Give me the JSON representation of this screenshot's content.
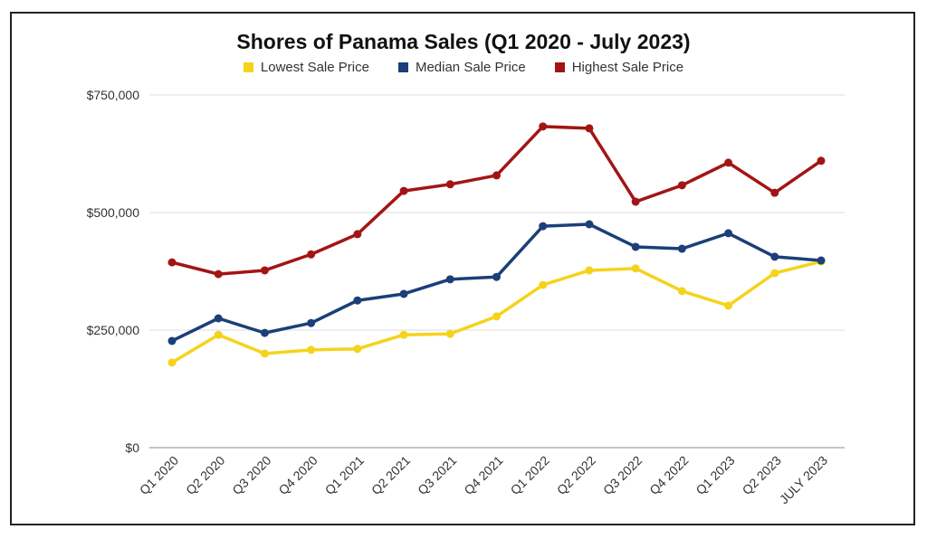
{
  "chart_data": {
    "type": "line",
    "title": "Shores of Panama Sales (Q1 2020 - July 2023)",
    "categories": [
      "Q1 2020",
      "Q2 2020",
      "Q3 2020",
      "Q4 2020",
      "Q1 2021",
      "Q2 2021",
      "Q3 2021",
      "Q4 2021",
      "Q1 2022",
      "Q2 2022",
      "Q3 2022",
      "Q4 2022",
      "Q1 2023",
      "Q2 2023",
      "JULY 2023"
    ],
    "ylim": [
      0,
      750000
    ],
    "yticks": [
      0,
      250000,
      500000,
      750000
    ],
    "ytick_labels": [
      "$0",
      "$250,000",
      "$500,000",
      "$750,000"
    ],
    "grid": true,
    "legend_position": "top",
    "series": [
      {
        "name": "Lowest Sale Price",
        "color": "#f5d31c",
        "values": [
          181000,
          240000,
          200000,
          208000,
          210000,
          240000,
          242000,
          279000,
          346000,
          377000,
          381000,
          333000,
          302000,
          371000,
          396000
        ]
      },
      {
        "name": "Median Sale Price",
        "color": "#1b3f78",
        "values": [
          227000,
          275000,
          244000,
          265000,
          313000,
          327000,
          358000,
          363000,
          471000,
          475000,
          427000,
          423000,
          456000,
          406000,
          398000
        ]
      },
      {
        "name": "Highest Sale Price",
        "color": "#a31515",
        "values": [
          394000,
          369000,
          377000,
          411000,
          454000,
          546000,
          560000,
          579000,
          683000,
          679000,
          523000,
          558000,
          606000,
          542000,
          610000
        ]
      }
    ]
  }
}
